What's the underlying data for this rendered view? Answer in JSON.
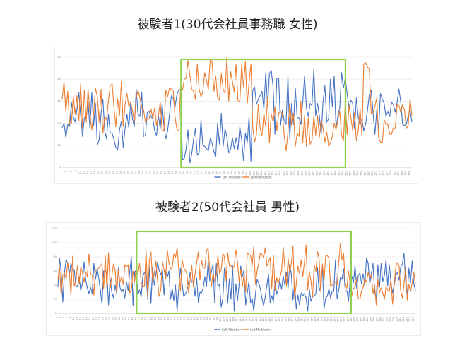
{
  "charts": [
    {
      "title": "被験者1(30代会社員事務職 女性)",
      "chart_data": {
        "type": "line",
        "title": "被験者1(30代会社員事務職 女性)",
        "ylim": [
          0,
          100
        ],
        "yticks": [
          0,
          20,
          40,
          60,
          80,
          100
        ],
        "n_points": 190,
        "grid": true,
        "legend_position": "bottom",
        "highlight_range_fraction": [
          0.34,
          0.81
        ],
        "highlight_color": "#8ed14f",
        "series": [
          {
            "name": "Left Attention",
            "color": "#4472c4",
            "segments": [
              {
                "to": 0.34,
                "base": 45,
                "amp": 22
              },
              {
                "to": 0.54,
                "base": 25,
                "amp": 18
              },
              {
                "to": 0.81,
                "base": 62,
                "amp": 28
              },
              {
                "to": 1.0,
                "base": 48,
                "amp": 18
              }
            ]
          },
          {
            "name": "Left Meditation",
            "color": "#ed7d31",
            "segments": [
              {
                "to": 0.34,
                "base": 55,
                "amp": 22
              },
              {
                "to": 0.54,
                "base": 80,
                "amp": 20
              },
              {
                "to": 0.81,
                "base": 38,
                "amp": 22
              },
              {
                "to": 0.86,
                "base": 45,
                "amp": 18
              },
              {
                "to": 0.88,
                "base": 95,
                "amp": 6
              },
              {
                "to": 1.0,
                "base": 42,
                "amp": 18
              }
            ]
          }
        ]
      }
    },
    {
      "title": "被験者2(50代会社員 男性)",
      "chart_data": {
        "type": "line",
        "title": "被験者2(50代会社員 男性)",
        "ylim": [
          0,
          120
        ],
        "yticks": [
          0,
          20,
          40,
          60,
          80,
          100,
          120
        ],
        "n_points": 220,
        "grid": true,
        "legend_position": "bottom",
        "highlight_range_fraction": [
          0.22,
          0.82
        ],
        "highlight_color": "#8ed14f",
        "series": [
          {
            "name": "Left Attention",
            "color": "#4472c4",
            "segments": [
              {
                "to": 0.22,
                "base": 45,
                "amp": 30
              },
              {
                "to": 0.82,
                "base": 40,
                "amp": 30
              },
              {
                "to": 1.0,
                "base": 55,
                "amp": 30
              }
            ]
          },
          {
            "name": "Left Meditation",
            "color": "#ed7d31",
            "segments": [
              {
                "to": 0.22,
                "base": 55,
                "amp": 30
              },
              {
                "to": 0.82,
                "base": 62,
                "amp": 32
              },
              {
                "to": 1.0,
                "base": 40,
                "amp": 25
              }
            ]
          }
        ]
      }
    }
  ]
}
